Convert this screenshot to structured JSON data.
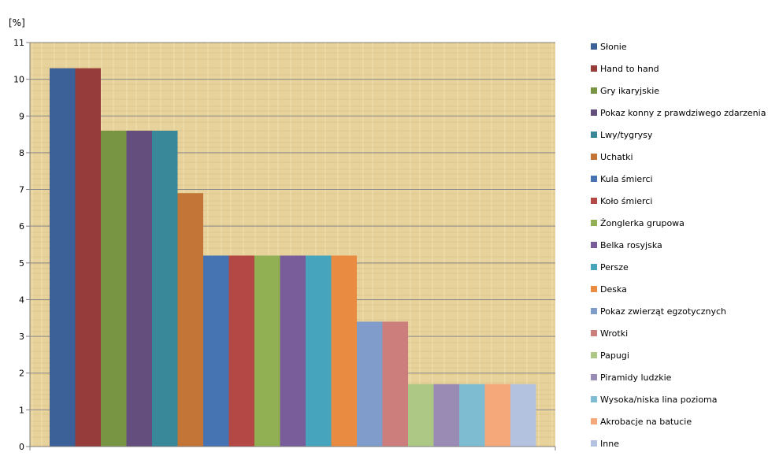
{
  "chart_data": {
    "type": "bar",
    "ylabel": "[%]",
    "xlabel": "",
    "ylim": [
      0,
      11
    ],
    "yticks": [
      0,
      1,
      2,
      3,
      4,
      5,
      6,
      7,
      8,
      9,
      10,
      11
    ],
    "grid": true,
    "legend_position": "right",
    "plot_background": "papyrus",
    "series": [
      {
        "name": "Słonie",
        "value": 10.3,
        "color": "#3c6198"
      },
      {
        "name": "Hand to hand",
        "value": 10.3,
        "color": "#963c3a"
      },
      {
        "name": "Gry ikaryjskie",
        "value": 8.6,
        "color": "#789544"
      },
      {
        "name": "Pokaz konny z prawdziwego zdarzenia",
        "value": 8.6,
        "color": "#634e7e"
      },
      {
        "name": "Lwy/tygrysy",
        "value": 8.6,
        "color": "#388899"
      },
      {
        "name": "Uchatki",
        "value": 6.9,
        "color": "#c27536"
      },
      {
        "name": "Kula śmierci",
        "value": 5.2,
        "color": "#4673b2"
      },
      {
        "name": "Koło śmierci",
        "value": 5.2,
        "color": "#b44844"
      },
      {
        "name": "Żonglerka grupowa",
        "value": 5.2,
        "color": "#90b053"
      },
      {
        "name": "Belka rosyjska",
        "value": 5.2,
        "color": "#785d9a"
      },
      {
        "name": "Persze",
        "value": 5.2,
        "color": "#46a4bd"
      },
      {
        "name": "Deska",
        "value": 5.2,
        "color": "#e98c41"
      },
      {
        "name": "Pokaz zwierząt egzotycznych",
        "value": 3.4,
        "color": "#7f9cca"
      },
      {
        "name": "Wrotki",
        "value": 3.4,
        "color": "#cc7e7d"
      },
      {
        "name": "Papugi",
        "value": 1.7,
        "color": "#adc785"
      },
      {
        "name": "Piramidy ludzkie",
        "value": 1.7,
        "color": "#9a8bb5"
      },
      {
        "name": "Wysoka/niska lina pozioma",
        "value": 1.7,
        "color": "#7ebcd1"
      },
      {
        "name": "Akrobacje na batucie",
        "value": 1.7,
        "color": "#f5a97a"
      },
      {
        "name": "Inne",
        "value": 1.7,
        "color": "#b3c2de"
      }
    ]
  }
}
